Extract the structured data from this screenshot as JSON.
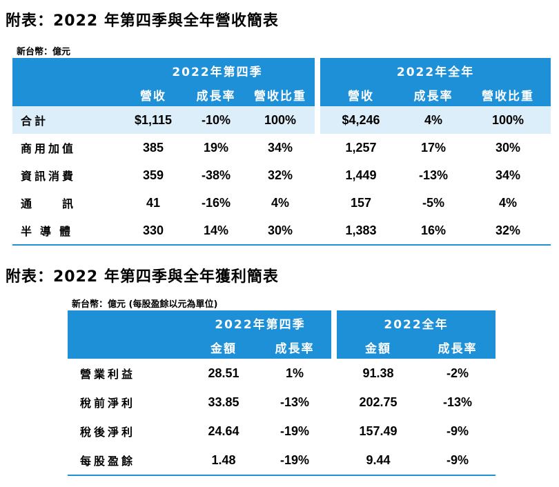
{
  "revenue_title": "附表：2022 年第四季與全年營收簡表",
  "revenue_unit": "新台幣：億元",
  "revenue_headers": {
    "q4": "2022年第四季",
    "full_year": "2022年全年",
    "col_revenue": "營收",
    "col_growth": "成長率",
    "col_share": "營收比重"
  },
  "revenue_rows": [
    {
      "label": "合計",
      "q4_rev": "$1,115",
      "q4_growth": "-10%",
      "q4_share": "100%",
      "fy_rev": "$4,246",
      "fy_growth": "4%",
      "fy_share": "100%"
    },
    {
      "label": "商用加值",
      "q4_rev": "385",
      "q4_growth": "19%",
      "q4_share": "34%",
      "fy_rev": "1,257",
      "fy_growth": "17%",
      "fy_share": "30%"
    },
    {
      "label": "資訊消費",
      "q4_rev": "359",
      "q4_growth": "-38%",
      "q4_share": "32%",
      "fy_rev": "1,449",
      "fy_growth": "-13%",
      "fy_share": "34%"
    },
    {
      "label": "通　訊",
      "q4_rev": "41",
      "q4_growth": "-16%",
      "q4_share": "4%",
      "fy_rev": "157",
      "fy_growth": "-5%",
      "fy_share": "4%"
    },
    {
      "label": "半導體",
      "q4_rev": "330",
      "q4_growth": "14%",
      "q4_share": "30%",
      "fy_rev": "1,383",
      "fy_growth": "16%",
      "fy_share": "32%"
    }
  ],
  "profit_title": "附表：2022 年第四季與全年獲利簡表",
  "profit_unit": "新台幣：億元 (每股盈餘以元為單位)",
  "profit_headers": {
    "q4": "2022年第四季",
    "full_year": "2022全年",
    "col_amount": "金額",
    "col_growth": "成長率"
  },
  "profit_rows": [
    {
      "label": "營業利益",
      "q4_amt": "28.51",
      "q4_growth": "1%",
      "fy_amt": "91.38",
      "fy_growth": "-2%"
    },
    {
      "label": "稅前淨利",
      "q4_amt": "33.85",
      "q4_growth": "-13%",
      "fy_amt": "202.75",
      "fy_growth": "-13%"
    },
    {
      "label": "稅後淨利",
      "q4_amt": "24.64",
      "q4_growth": "-19%",
      "fy_amt": "157.49",
      "fy_growth": "-9%"
    },
    {
      "label": "每股盈餘",
      "q4_amt": "1.48",
      "q4_growth": "-19%",
      "fy_amt": "9.44",
      "fy_growth": "-9%"
    }
  ]
}
